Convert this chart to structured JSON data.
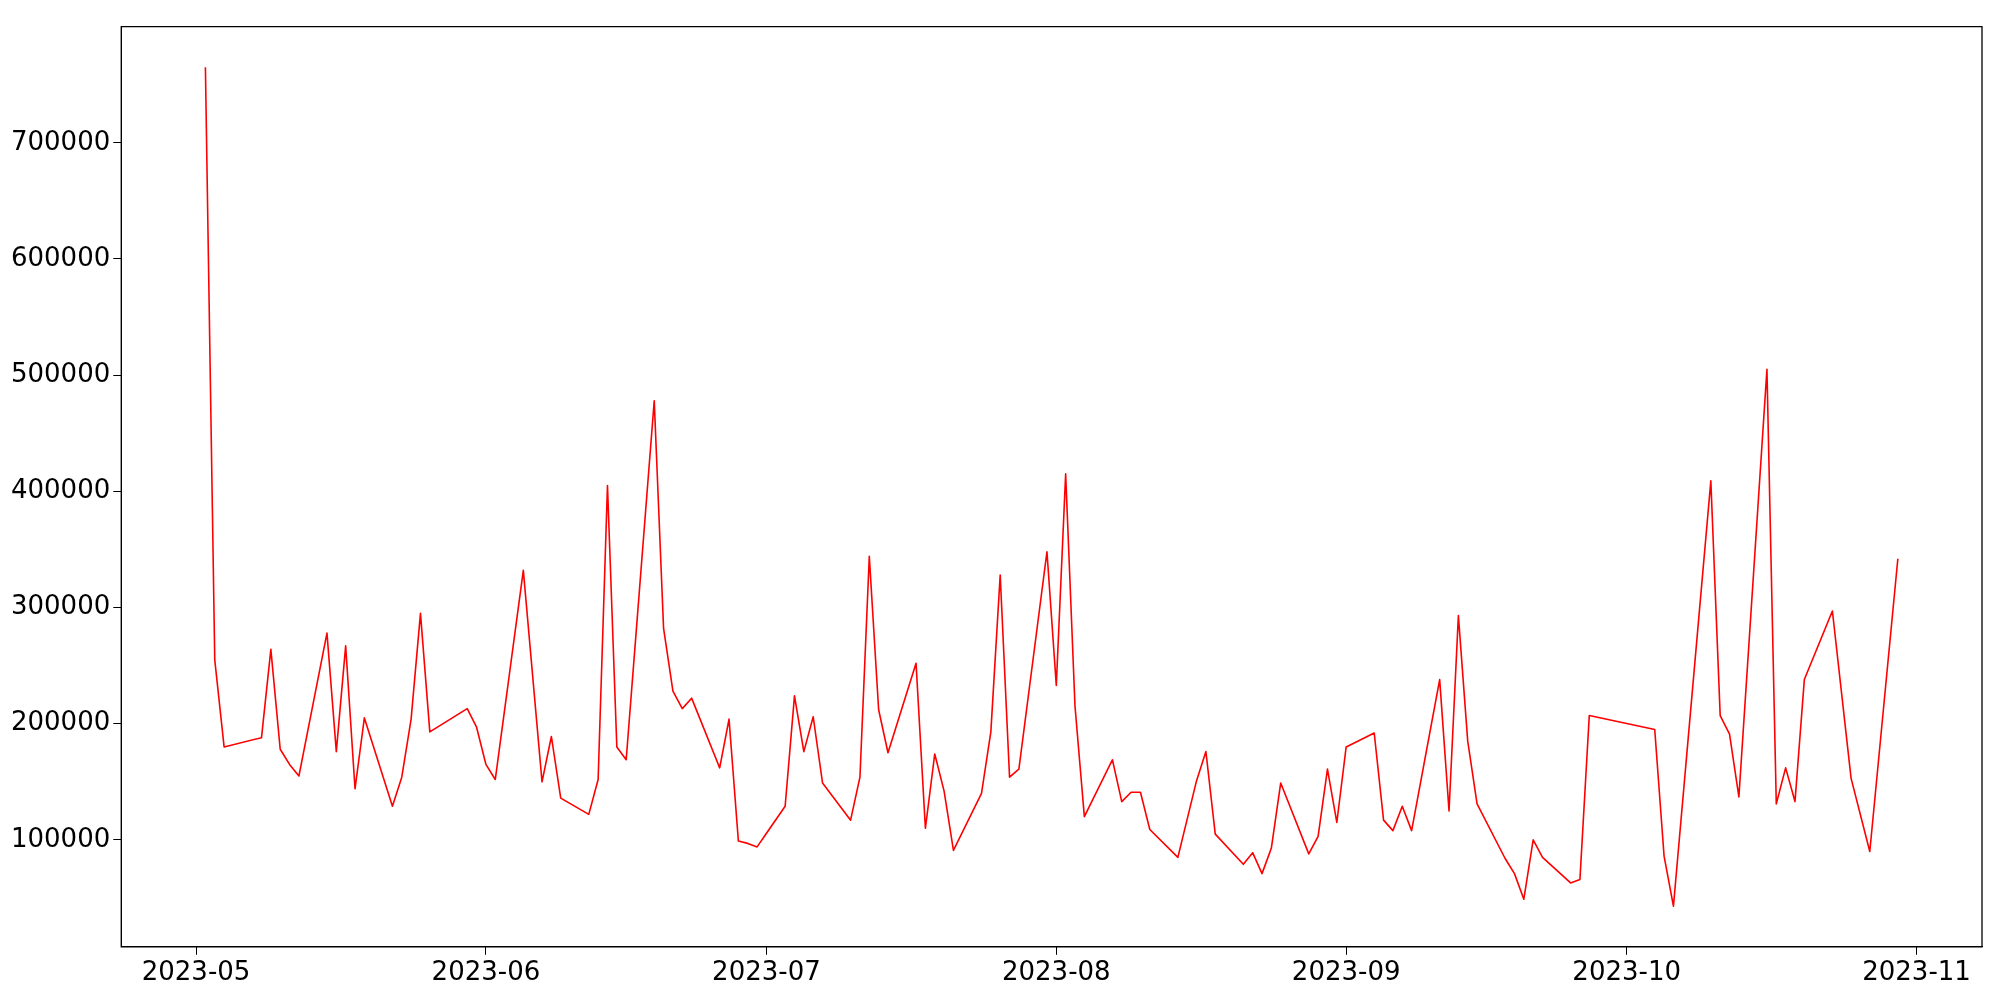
{
  "chart_data": {
    "type": "line",
    "x": [
      "2023-05-02",
      "2023-05-03",
      "2023-05-04",
      "2023-05-08",
      "2023-05-09",
      "2023-05-10",
      "2023-05-11",
      "2023-05-12",
      "2023-05-15",
      "2023-05-16",
      "2023-05-17",
      "2023-05-18",
      "2023-05-19",
      "2023-05-22",
      "2023-05-23",
      "2023-05-24",
      "2023-05-25",
      "2023-05-26",
      "2023-05-30",
      "2023-05-31",
      "2023-06-01",
      "2023-06-02",
      "2023-06-05",
      "2023-06-07",
      "2023-06-08",
      "2023-06-09",
      "2023-06-12",
      "2023-06-13",
      "2023-06-14",
      "2023-06-15",
      "2023-06-16",
      "2023-06-19",
      "2023-06-20",
      "2023-06-21",
      "2023-06-22",
      "2023-06-23",
      "2023-06-26",
      "2023-06-27",
      "2023-06-28",
      "2023-06-29",
      "2023-06-30",
      "2023-07-03",
      "2023-07-04",
      "2023-07-05",
      "2023-07-06",
      "2023-07-07",
      "2023-07-10",
      "2023-07-11",
      "2023-07-12",
      "2023-07-13",
      "2023-07-14",
      "2023-07-17",
      "2023-07-18",
      "2023-07-19",
      "2023-07-20",
      "2023-07-21",
      "2023-07-24",
      "2023-07-25",
      "2023-07-26",
      "2023-07-27",
      "2023-07-28",
      "2023-07-31",
      "2023-08-01",
      "2023-08-02",
      "2023-08-03",
      "2023-08-04",
      "2023-08-07",
      "2023-08-08",
      "2023-08-09",
      "2023-08-10",
      "2023-08-11",
      "2023-08-14",
      "2023-08-16",
      "2023-08-17",
      "2023-08-18",
      "2023-08-21",
      "2023-08-22",
      "2023-08-23",
      "2023-08-24",
      "2023-08-25",
      "2023-08-28",
      "2023-08-29",
      "2023-08-30",
      "2023-08-31",
      "2023-09-01",
      "2023-09-04",
      "2023-09-05",
      "2023-09-06",
      "2023-09-07",
      "2023-09-08",
      "2023-09-11",
      "2023-09-12",
      "2023-09-13",
      "2023-09-14",
      "2023-09-15",
      "2023-09-18",
      "2023-09-19",
      "2023-09-20",
      "2023-09-21",
      "2023-09-22",
      "2023-09-25",
      "2023-09-26",
      "2023-09-27",
      "2023-10-04",
      "2023-10-05",
      "2023-10-06",
      "2023-10-10",
      "2023-10-11",
      "2023-10-12",
      "2023-10-13",
      "2023-10-16",
      "2023-10-17",
      "2023-10-18",
      "2023-10-19",
      "2023-10-20",
      "2023-10-23",
      "2023-10-25",
      "2023-10-27",
      "2023-10-30"
    ],
    "series": [
      {
        "color": "#ff0000",
        "values": [
          765000,
          255000,
          180000,
          188000,
          264000,
          178000,
          165000,
          155000,
          278000,
          176000,
          267000,
          144000,
          205000,
          129000,
          154000,
          204000,
          295000,
          193000,
          213000,
          197000,
          165000,
          152000,
          332000,
          150000,
          189000,
          136000,
          122000,
          152000,
          405000,
          180000,
          169000,
          478000,
          282000,
          228000,
          213000,
          222000,
          162000,
          204000,
          99000,
          97000,
          94000,
          129000,
          224000,
          176000,
          206000,
          149000,
          117000,
          154000,
          344000,
          212000,
          175000,
          252000,
          110000,
          174000,
          142000,
          91000,
          140000,
          193000,
          328000,
          154000,
          161000,
          348000,
          233000,
          415000,
          215000,
          120000,
          169000,
          133000,
          141000,
          141000,
          109000,
          85000,
          151000,
          176000,
          105000,
          79000,
          89000,
          71000,
          93000,
          149000,
          88000,
          103000,
          161000,
          115000,
          180000,
          192000,
          117000,
          108000,
          129000,
          108000,
          238000,
          125000,
          293000,
          185000,
          131000,
          84000,
          71000,
          49000,
          100000,
          85000,
          63000,
          66000,
          207000,
          195000,
          86000,
          43000,
          409000,
          207000,
          191000,
          137000,
          505000,
          131000,
          162000,
          133000,
          238000,
          297000,
          153000,
          90000,
          342000
        ]
      }
    ],
    "xlim": [
      "2023-04-23",
      "2023-11-08"
    ],
    "xticks": [
      "2023-05",
      "2023-06",
      "2023-07",
      "2023-08",
      "2023-09",
      "2023-10",
      "2023-11"
    ],
    "ylim": [
      8000,
      800000
    ],
    "yticks": [
      100000,
      200000,
      300000,
      400000,
      500000,
      600000,
      700000
    ],
    "grid": false,
    "legend": false
  }
}
